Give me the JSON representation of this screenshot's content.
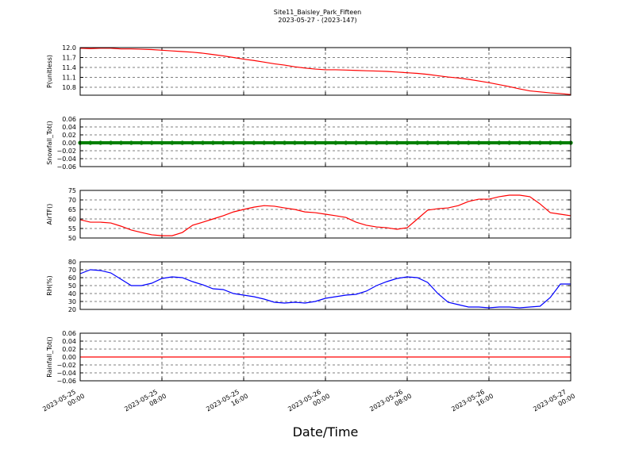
{
  "title": "Site11_Baisley_Park_Fifteen",
  "subtitle": "2023-05-27 - (2023-147)",
  "xlabel": "Date/Time",
  "xlim": [
    "2023-05-25 00:00",
    "2023-05-27 00:00"
  ],
  "xticks": [
    "2023-05-25 00:00",
    "2023-05-25 08:00",
    "2023-05-25 16:00",
    "2023-05-26 00:00",
    "2023-05-26 08:00",
    "2023-05-26 16:00",
    "2023-05-27 00:00"
  ],
  "x": [
    "2023-05-25 00:00",
    "2023-05-25 01:00",
    "2023-05-25 02:00",
    "2023-05-25 03:00",
    "2023-05-25 04:00",
    "2023-05-25 05:00",
    "2023-05-25 06:00",
    "2023-05-25 07:00",
    "2023-05-25 08:00",
    "2023-05-25 09:00",
    "2023-05-25 10:00",
    "2023-05-25 11:00",
    "2023-05-25 12:00",
    "2023-05-25 13:00",
    "2023-05-25 14:00",
    "2023-05-25 15:00",
    "2023-05-25 16:00",
    "2023-05-25 17:00",
    "2023-05-25 18:00",
    "2023-05-25 19:00",
    "2023-05-25 20:00",
    "2023-05-25 21:00",
    "2023-05-25 22:00",
    "2023-05-25 23:00",
    "2023-05-26 00:00",
    "2023-05-26 01:00",
    "2023-05-26 02:00",
    "2023-05-26 03:00",
    "2023-05-26 04:00",
    "2023-05-26 05:00",
    "2023-05-26 06:00",
    "2023-05-26 07:00",
    "2023-05-26 08:00",
    "2023-05-26 09:00",
    "2023-05-26 10:00",
    "2023-05-26 11:00",
    "2023-05-26 12:00",
    "2023-05-26 13:00",
    "2023-05-26 14:00",
    "2023-05-26 15:00",
    "2023-05-26 16:00",
    "2023-05-26 17:00",
    "2023-05-26 18:00",
    "2023-05-26 19:00",
    "2023-05-26 20:00",
    "2023-05-26 21:00",
    "2023-05-26 22:00",
    "2023-05-26 23:00",
    "2023-05-27 00:00"
  ],
  "chart_data": [
    {
      "type": "line",
      "ylabel": "P(unitless)",
      "color": "#ff0000",
      "grid": true,
      "ylim": [
        10.56,
        12.0
      ],
      "yticks": [
        10.8,
        11.1,
        11.4,
        11.7,
        {
          "value": 12.0,
          "label": "12.0"
        }
      ],
      "values": [
        11.98,
        11.97,
        11.98,
        11.98,
        11.96,
        11.96,
        11.95,
        11.94,
        11.92,
        11.9,
        11.88,
        11.86,
        11.83,
        11.79,
        11.75,
        11.7,
        11.65,
        11.61,
        11.56,
        11.51,
        11.47,
        11.42,
        11.38,
        11.35,
        11.33,
        11.33,
        11.32,
        11.31,
        11.3,
        11.29,
        11.28,
        11.26,
        11.24,
        11.22,
        11.19,
        11.15,
        11.11,
        11.08,
        11.04,
        10.99,
        10.94,
        10.88,
        10.82,
        10.75,
        10.69,
        10.66,
        10.63,
        10.61,
        10.58
      ]
    },
    {
      "type": "scatter",
      "ylabel": "Snowfall_Tot()",
      "color": "#008000",
      "grid": true,
      "ylim": [
        -0.06,
        0.06
      ],
      "yticks": [
        {
          "value": -0.06,
          "label": "−0.06"
        },
        {
          "value": -0.04,
          "label": "−0.04"
        },
        {
          "value": -0.02,
          "label": "−0.02"
        },
        {
          "value": 0,
          "label": "0.00"
        },
        {
          "value": 0.02,
          "label": "0.02"
        },
        {
          "value": 0.04,
          "label": "0.04"
        },
        {
          "value": 0.06,
          "label": "0.06"
        }
      ],
      "values": [
        0,
        0,
        0,
        0,
        0,
        0,
        0,
        0,
        0,
        0,
        0,
        0,
        0,
        0,
        0,
        0,
        0,
        0,
        0,
        0,
        0,
        0,
        0,
        0,
        0,
        0,
        0,
        0,
        0,
        0,
        0,
        0,
        0,
        0,
        0,
        0,
        0,
        0,
        0,
        0,
        0,
        0,
        0,
        0,
        0,
        0,
        0,
        0,
        0
      ]
    },
    {
      "type": "line",
      "ylabel": "AirTF()",
      "color": "#ff0000",
      "grid": true,
      "ylim": [
        50,
        75
      ],
      "yticks": [
        50,
        55,
        60,
        65,
        70,
        75
      ],
      "values": [
        59.6,
        58.3,
        58.3,
        57.9,
        56.2,
        54.2,
        52.9,
        51.7,
        51.2,
        51.2,
        52.9,
        56.7,
        58.3,
        60,
        61.7,
        63.7,
        65,
        66.2,
        67,
        66.7,
        65.8,
        65,
        63.7,
        63.3,
        62.5,
        61.7,
        60.8,
        58.3,
        56.7,
        55.8,
        55.4,
        54.6,
        55.4,
        60,
        64.6,
        65.4,
        65.8,
        67,
        69.2,
        70.4,
        70.4,
        71.7,
        72.5,
        72.5,
        71.7,
        67.9,
        63.3,
        62.5,
        61.7
      ]
    },
    {
      "type": "line",
      "ylabel": "RH(%)",
      "color": "#0000ff",
      "grid": true,
      "ylim": [
        20,
        80
      ],
      "yticks": [
        20,
        30,
        40,
        50,
        60,
        70,
        80
      ],
      "values": [
        65,
        70,
        69,
        66,
        58,
        50,
        50,
        53,
        59,
        61,
        60,
        55,
        51,
        46,
        45,
        40,
        38,
        36,
        33,
        29,
        28,
        29,
        28,
        30,
        34,
        36,
        38,
        39,
        43,
        50,
        55,
        59,
        61,
        60,
        54,
        40,
        29,
        26,
        23,
        23,
        22,
        23,
        23,
        22,
        23,
        24,
        35,
        52,
        52
      ]
    },
    {
      "type": "line",
      "ylabel": "Rainfall_Tot()",
      "color": "#ff0000",
      "grid": true,
      "ylim": [
        -0.06,
        0.06
      ],
      "yticks": [
        {
          "value": -0.06,
          "label": "−0.06"
        },
        {
          "value": -0.04,
          "label": "−0.04"
        },
        {
          "value": -0.02,
          "label": "−0.02"
        },
        {
          "value": 0,
          "label": "0.00"
        },
        {
          "value": 0.02,
          "label": "0.02"
        },
        {
          "value": 0.04,
          "label": "0.04"
        },
        {
          "value": 0.06,
          "label": "0.06"
        }
      ],
      "values": [
        0,
        0,
        0,
        0,
        0,
        0,
        0,
        0,
        0,
        0,
        0,
        0,
        0,
        0,
        0,
        0,
        0,
        0,
        0,
        0,
        0,
        0,
        0,
        0,
        0,
        0,
        0,
        0,
        0,
        0,
        0,
        0,
        0,
        0,
        0,
        0,
        0,
        0,
        0,
        0,
        0,
        0,
        0,
        0,
        0,
        0,
        0,
        0,
        0
      ]
    }
  ]
}
